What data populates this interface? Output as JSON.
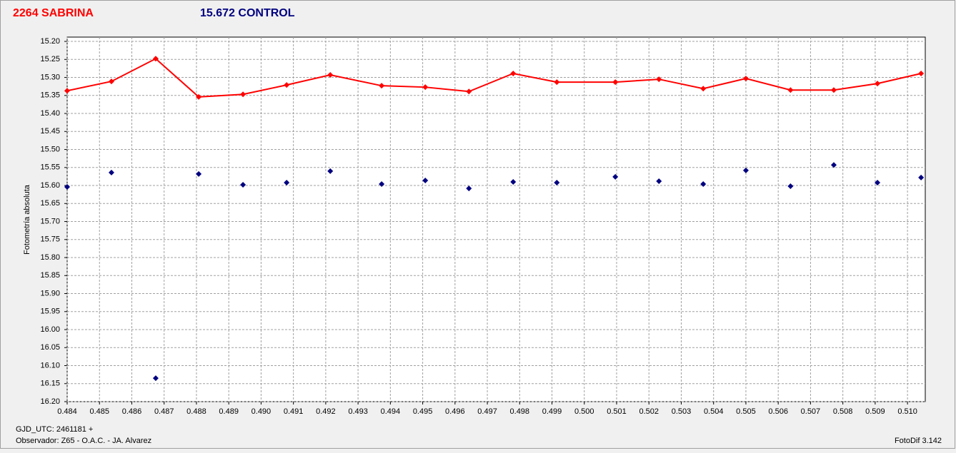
{
  "chart_data": {
    "type": "line",
    "y_label": "Fotometría absoluta",
    "x_label": "GJD_UTC: 2461181 +",
    "observer": "Observador: Z65 - O.A.C. - JA. Alvarez",
    "software": "FotoDif 3.142",
    "x": [
      0.484,
      0.48537,
      0.48674,
      0.48807,
      0.48944,
      0.49079,
      0.49214,
      0.49373,
      0.49508,
      0.49643,
      0.4978,
      0.49915,
      0.50096,
      0.50231,
      0.50368,
      0.505,
      0.50638,
      0.50772,
      0.50907,
      0.51042
    ],
    "series": [
      {
        "name": "2264 SABRINA",
        "color": "#ff0000",
        "line": true,
        "values": [
          15.337,
          15.311,
          15.248,
          15.354,
          15.347,
          15.321,
          15.293,
          15.323,
          15.327,
          15.339,
          15.289,
          15.313,
          15.313,
          15.305,
          15.331,
          15.303,
          15.335,
          15.335,
          15.317,
          15.289
        ]
      },
      {
        "name": "15.672 CONTROL",
        "color": "#000080",
        "line": false,
        "values": [
          15.604,
          15.564,
          16.135,
          15.568,
          15.598,
          15.592,
          15.56,
          15.596,
          15.586,
          15.608,
          15.59,
          15.592,
          15.576,
          15.588,
          15.596,
          15.558,
          15.602,
          15.543,
          15.592,
          15.578
        ]
      }
    ],
    "xlim": [
      0.484,
      0.51055
    ],
    "ylim": [
      15.188,
      16.2
    ],
    "y_inverted": true,
    "grid": true,
    "xticks": [
      0.484,
      0.485,
      0.486,
      0.487,
      0.488,
      0.489,
      {
        "value": 0.49,
        "label": "0.490"
      },
      0.491,
      0.492,
      0.493,
      0.494,
      0.495,
      0.496,
      0.497,
      0.498,
      0.499,
      {
        "value": 0.5,
        "label": "0.500"
      },
      0.501,
      0.502,
      0.503,
      0.504,
      0.505,
      0.506,
      0.507,
      0.508,
      0.509,
      {
        "value": 0.51,
        "label": "0.510"
      }
    ],
    "yticks": [
      {
        "value": 15.2,
        "label": "15.20"
      },
      15.25,
      {
        "value": 15.3,
        "label": "15.30"
      },
      15.35,
      {
        "value": 15.4,
        "label": "15.40"
      },
      15.45,
      {
        "value": 15.5,
        "label": "15.50"
      },
      15.55,
      {
        "value": 15.6,
        "label": "15.60"
      },
      15.65,
      {
        "value": 15.7,
        "label": "15.70"
      },
      15.75,
      {
        "value": 15.8,
        "label": "15.80"
      },
      15.85,
      {
        "value": 15.9,
        "label": "15.90"
      },
      15.95,
      {
        "value": 16,
        "label": "16.00"
      },
      16.05,
      {
        "value": 16.1,
        "label": "16.10"
      },
      16.15,
      {
        "value": 16.2,
        "label": "16.20"
      }
    ]
  }
}
